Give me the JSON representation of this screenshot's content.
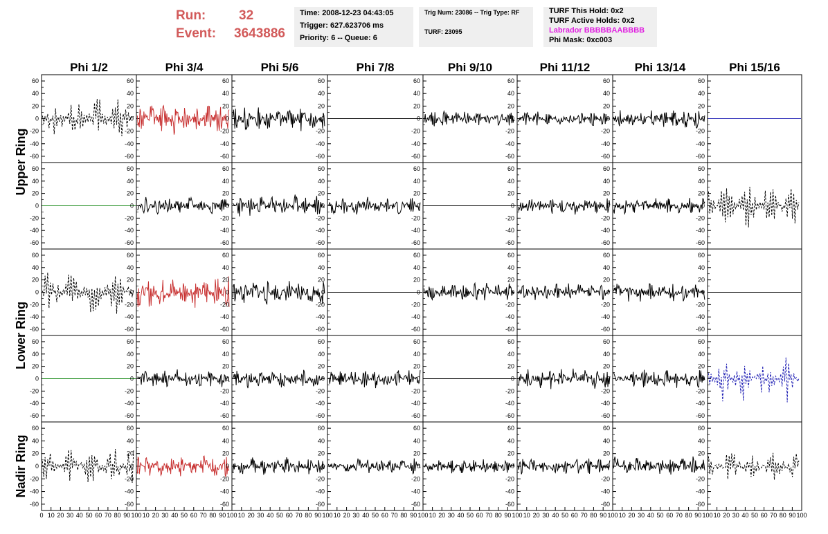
{
  "header": {
    "run_label": "Run:",
    "run_value": "32",
    "event_label": "Event:",
    "event_value": "3643886",
    "time": "Time: 2008-12-23 04:43:05",
    "trigger": "Trigger: 627.623706 ms",
    "priority_queue": "Priority: 6 -- Queue: 6",
    "trig_num_type": "Trig Num: 23086 -- Trig Type: RF",
    "turf": "TURF: 23095",
    "turf_this_hold": "TURF This Hold: 0x2",
    "turf_active_holds": "TURF Active Holds: 0x2",
    "labrador": "Labrador BBBBBAABBBB",
    "phi_mask": "Phi Mask: 0xc003",
    "labrador_color": "#e020e0",
    "run_color": "#d25a5a"
  },
  "chart_data": {
    "type": "line",
    "columns": [
      "Phi 1/2",
      "Phi 3/4",
      "Phi 5/6",
      "Phi 7/8",
      "Phi 9/10",
      "Phi 11/12",
      "Phi 13/14",
      "Phi 15/16"
    ],
    "rows": [
      "Upper Ring",
      "Upper Ring",
      "Lower Ring",
      "Lower Ring",
      "Nadir Ring"
    ],
    "row_group_labels": [
      "Upper Ring",
      "Lower Ring",
      "Nadir Ring"
    ],
    "ylim": [
      -70,
      70
    ],
    "yticks": [
      -60,
      -40,
      -20,
      0,
      20,
      40,
      60
    ],
    "xlim": [
      0,
      100
    ],
    "xticks": [
      0,
      10,
      20,
      30,
      40,
      50,
      60,
      70,
      80,
      90,
      100
    ],
    "xtick_labels": [
      "0",
      "10",
      "20",
      "30",
      "40",
      "50",
      "60",
      "70",
      "80",
      "90",
      "100"
    ],
    "panels": [
      [
        {
          "style": "dashed",
          "color": "#000000",
          "amp": 28,
          "seed": 11
        },
        {
          "style": "solid",
          "color": "#c83232",
          "amp": 20,
          "seed": 12
        },
        {
          "style": "solid",
          "color": "#000000",
          "amp": 16,
          "seed": 13
        },
        {
          "style": "flat",
          "color": "#000000",
          "amp": 0,
          "seed": 14
        },
        {
          "style": "solid",
          "color": "#000000",
          "amp": 10,
          "seed": 15
        },
        {
          "style": "solid",
          "color": "#000000",
          "amp": 9,
          "seed": 16
        },
        {
          "style": "solid",
          "color": "#000000",
          "amp": 12,
          "seed": 17
        },
        {
          "style": "flat",
          "color": "#1f1fb4",
          "amp": 0,
          "seed": 18
        }
      ],
      [
        {
          "style": "flat",
          "color": "#1a8a1a",
          "amp": 0,
          "seed": 21
        },
        {
          "style": "solid",
          "color": "#000000",
          "amp": 11,
          "seed": 22
        },
        {
          "style": "solid",
          "color": "#000000",
          "amp": 14,
          "seed": 23
        },
        {
          "style": "solid",
          "color": "#000000",
          "amp": 12,
          "seed": 24
        },
        {
          "style": "flat",
          "color": "#000000",
          "amp": 0,
          "seed": 25
        },
        {
          "style": "solid",
          "color": "#000000",
          "amp": 11,
          "seed": 26
        },
        {
          "style": "solid",
          "color": "#000000",
          "amp": 11,
          "seed": 27
        },
        {
          "style": "dashed",
          "color": "#000000",
          "amp": 30,
          "seed": 28
        }
      ],
      [
        {
          "style": "dashed",
          "color": "#000000",
          "amp": 28,
          "seed": 31
        },
        {
          "style": "solid",
          "color": "#c83232",
          "amp": 20,
          "seed": 32
        },
        {
          "style": "solid",
          "color": "#000000",
          "amp": 16,
          "seed": 33
        },
        {
          "style": "flat",
          "color": "#000000",
          "amp": 0,
          "seed": 34
        },
        {
          "style": "solid",
          "color": "#000000",
          "amp": 12,
          "seed": 35
        },
        {
          "style": "solid",
          "color": "#000000",
          "amp": 11,
          "seed": 36
        },
        {
          "style": "solid",
          "color": "#000000",
          "amp": 12,
          "seed": 37
        },
        {
          "style": "flat",
          "color": "#000000",
          "amp": 0,
          "seed": 38
        }
      ],
      [
        {
          "style": "flat",
          "color": "#1a8a1a",
          "amp": 0,
          "seed": 41
        },
        {
          "style": "solid",
          "color": "#000000",
          "amp": 12,
          "seed": 42
        },
        {
          "style": "solid",
          "color": "#000000",
          "amp": 12,
          "seed": 43
        },
        {
          "style": "solid",
          "color": "#000000",
          "amp": 12,
          "seed": 44
        },
        {
          "style": "flat",
          "color": "#000000",
          "amp": 0,
          "seed": 45
        },
        {
          "style": "solid",
          "color": "#000000",
          "amp": 13,
          "seed": 46
        },
        {
          "style": "solid",
          "color": "#000000",
          "amp": 12,
          "seed": 47
        },
        {
          "style": "dashed",
          "color": "#1f1fb4",
          "amp": 30,
          "seed": 48
        }
      ],
      [
        {
          "style": "dashed",
          "color": "#000000",
          "amp": 28,
          "seed": 51
        },
        {
          "style": "solid",
          "color": "#c83232",
          "amp": 14,
          "seed": 52
        },
        {
          "style": "solid",
          "color": "#000000",
          "amp": 11,
          "seed": 53
        },
        {
          "style": "solid",
          "color": "#000000",
          "amp": 10,
          "seed": 54
        },
        {
          "style": "solid",
          "color": "#000000",
          "amp": 9,
          "seed": 55
        },
        {
          "style": "solid",
          "color": "#000000",
          "amp": 10,
          "seed": 56
        },
        {
          "style": "solid",
          "color": "#000000",
          "amp": 12,
          "seed": 57
        },
        {
          "style": "dashed",
          "color": "#000000",
          "amp": 18,
          "seed": 58
        }
      ]
    ]
  }
}
